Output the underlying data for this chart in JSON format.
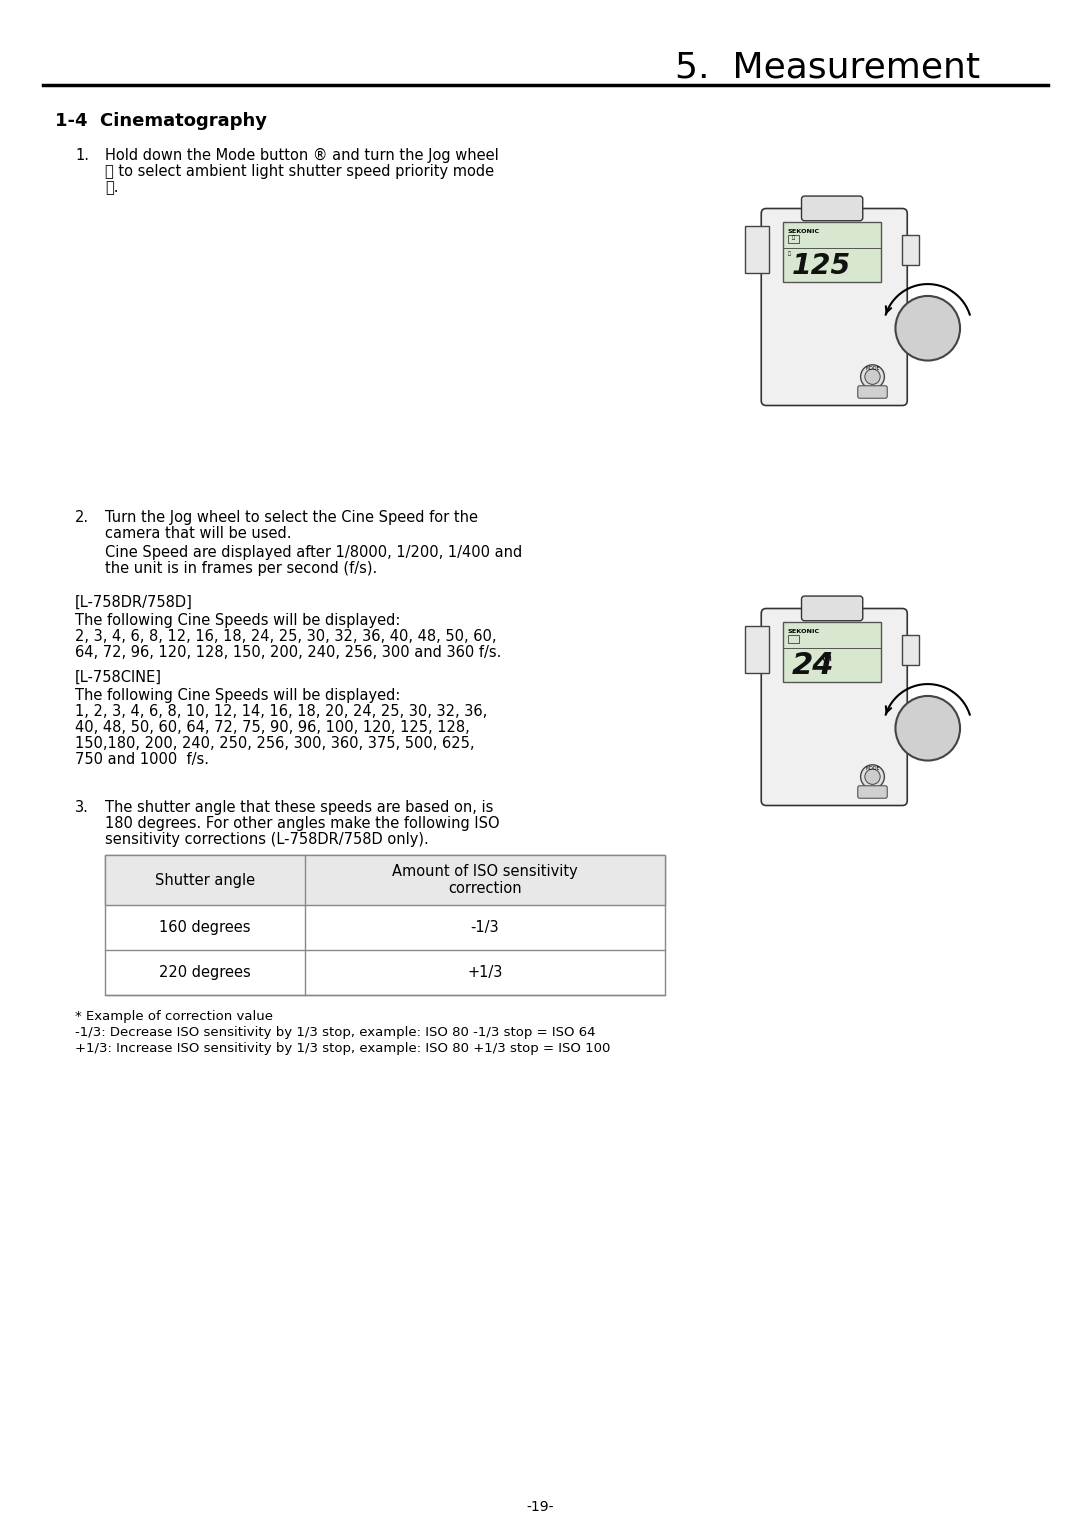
{
  "title": "5.  Measurement",
  "section": "1-4  Cinematography",
  "bg_color": "#ffffff",
  "text_color": "#000000",
  "title_fontsize": 28,
  "section_fontsize": 13,
  "body_fontsize": 10.5,
  "page_number": "-19-",
  "step1_text": "Hold down the Mode button ® and turn the Jog wheel\nⓔ to select ambient light shutter speed priority mode\nⓉ.",
  "step2_text": "Turn the Jog wheel to select the Cine Speed for the\ncamera that will be used.",
  "step2b_text": "Cine Speed are displayed after 1/8000, 1/200, 1/400 and\nthe unit is in frames per second (f/s).",
  "l758dr_label": "[L-758DR/758D]",
  "l758dr_text": "The following Cine Speeds will be displayed:\n2, 3, 4, 6, 8, 12, 16, 18, 24, 25, 30, 32, 36, 40, 48, 50, 60,\n64, 72, 96, 120, 128, 150, 200, 240, 256, 300 and 360 f/s.",
  "l758cine_label": "[L-758CINE]",
  "l758cine_text": "The following Cine Speeds will be displayed:\n1, 2, 3, 4, 6, 8, 10, 12, 14, 16, 18, 20, 24, 25, 30, 32, 36,\n40, 48, 50, 60, 64, 72, 75, 90, 96, 100, 120, 125, 128,\n150,180, 200, 240, 250, 256, 300, 360, 375, 500, 625,\n750 and 1000  f/s.",
  "step3_text": "The shutter angle that these speeds are based on, is\n180 degrees. For other angles make the following ISO\nsensitivity corrections (L-758DR/758D only).",
  "table_header1": "Shutter angle",
  "table_header2": "Amount of ISO sensitivity\ncorrection",
  "table_row1": [
    "160 degrees",
    "-1/3"
  ],
  "table_row2": [
    "220 degrees",
    "+1/3"
  ],
  "footnote1": "* Example of correction value",
  "footnote2": "-1/3: Decrease ISO sensitivity by 1/3 stop, example: ISO 80 -1/3 stop = ISO 64",
  "footnote3": "+1/3: Increase ISO sensitivity by 1/3 stop, example: ISO 80 +1/3 stop = ISO 100"
}
